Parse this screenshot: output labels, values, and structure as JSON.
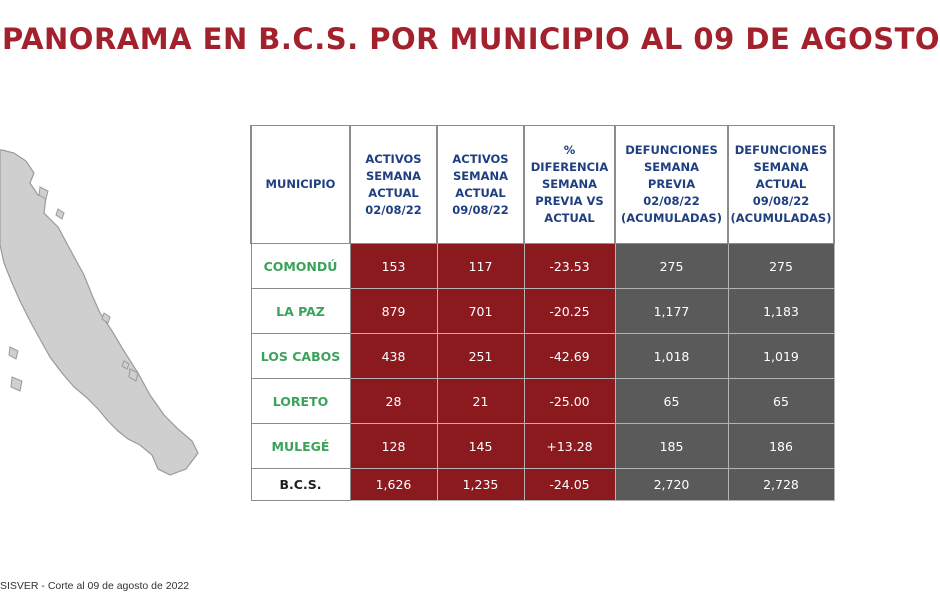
{
  "title": "PANORAMA EN B.C.S. POR MUNICIPIO AL 09 DE AGOSTO",
  "colors": {
    "title": "#a3212c",
    "header_text": "#1f3f80",
    "municipio_text": "#3aa35a",
    "active_cells": "#8b1a1f",
    "defunciones_cells": "#5a5a5a"
  },
  "map": {
    "icon": "baja-california-sur-map-icon"
  },
  "table": {
    "headers": [
      "MUNICIPIO",
      "ACTIVOS\nSEMANA\nACTUAL\n02/08/22",
      "ACTIVOS\nSEMANA\nACTUAL\n09/08/22",
      "%\nDIFERENCIA\nSEMANA\nPREVIA VS\nACTUAL",
      "DEFUNCIONES\nSEMANA\nPREVIA\n02/08/22\n(ACUMULADAS)",
      "DEFUNCIONES\nSEMANA\nACTUAL\n09/08/22\n(ACUMULADAS)"
    ],
    "rows": [
      {
        "municipio": "COMONDÚ",
        "activos_0208": "153",
        "activos_0908": "117",
        "diferencia": "-23.53",
        "def_previa": "275",
        "def_actual": "275"
      },
      {
        "municipio": "LA PAZ",
        "activos_0208": "879",
        "activos_0908": "701",
        "diferencia": "-20.25",
        "def_previa": "1,177",
        "def_actual": "1,183"
      },
      {
        "municipio": "LOS CABOS",
        "activos_0208": "438",
        "activos_0908": "251",
        "diferencia": "-42.69",
        "def_previa": "1,018",
        "def_actual": "1,019"
      },
      {
        "municipio": "LORETO",
        "activos_0208": "28",
        "activos_0908": "21",
        "diferencia": "-25.00",
        "def_previa": "65",
        "def_actual": "65"
      },
      {
        "municipio": "MULEGÉ",
        "activos_0208": "128",
        "activos_0908": "145",
        "diferencia": "+13.28",
        "def_previa": "185",
        "def_actual": "186"
      }
    ],
    "total": {
      "municipio": "B.C.S.",
      "activos_0208": "1,626",
      "activos_0908": "1,235",
      "diferencia": "-24.05",
      "def_previa": "2,720",
      "def_actual": "2,728"
    }
  },
  "source": "SISVER - Corte al 09 de agosto de 2022"
}
